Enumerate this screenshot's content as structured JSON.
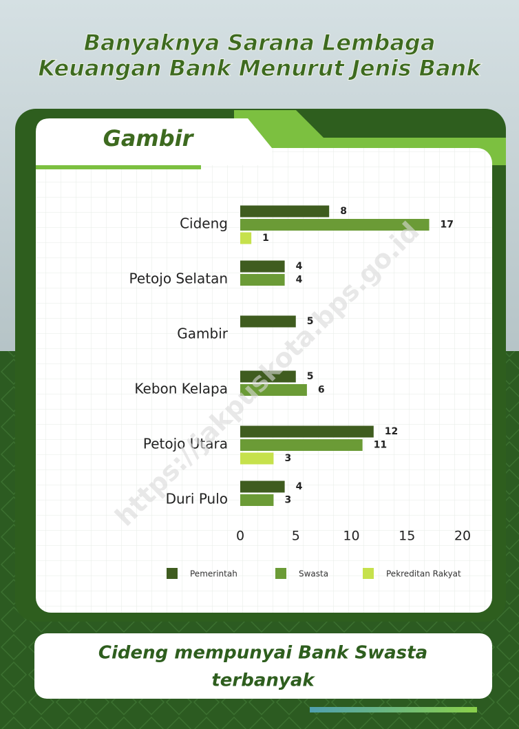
{
  "header": {
    "title_lines": [
      "Banyaknya Sarana Lembaga",
      "Keuangan Bank Menurut Jenis Bank"
    ]
  },
  "chart_data": {
    "type": "bar",
    "orientation": "horizontal",
    "title": "Gambir",
    "categories": [
      "Cideng",
      "Petojo Selatan",
      "Gambir",
      "Kebon Kelapa",
      "Petojo Utara",
      "Duri Pulo"
    ],
    "series": [
      {
        "name": "Pemerintah",
        "color": "#3f5c1f",
        "values": [
          8,
          4,
          5,
          5,
          12,
          4
        ]
      },
      {
        "name": "Swasta",
        "color": "#6b9b36",
        "values": [
          17,
          4,
          null,
          6,
          11,
          3
        ]
      },
      {
        "name": "Pekreditan Rakyat",
        "color": "#c6e14c",
        "values": [
          1,
          null,
          null,
          null,
          3,
          null
        ]
      }
    ],
    "xlim": [
      0,
      20
    ],
    "xticks": [
      0,
      5,
      10,
      15,
      20
    ],
    "legend": "bottom"
  },
  "watermark": "https://jakpuskota.bps.go.id",
  "caption_lines": [
    "Cideng mempunyai Bank Swasta",
    "terbanyak"
  ]
}
